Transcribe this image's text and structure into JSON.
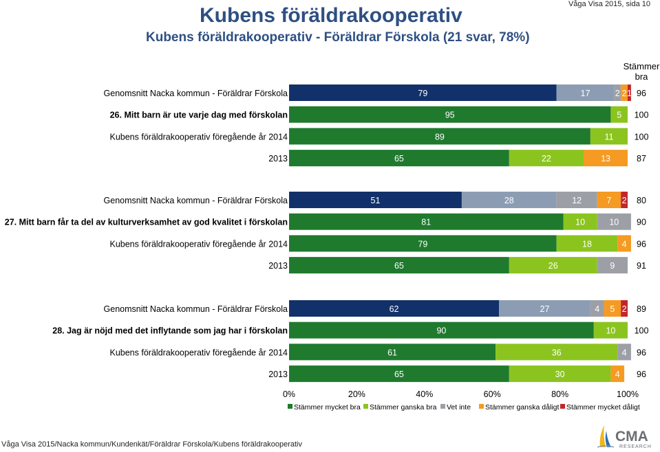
{
  "header": {
    "title": "Kubens föräldrakooperativ",
    "subtitle": "Kubens föräldrakooperativ - Föräldrar Förskola (21 svar, 78%)",
    "source": "Våga Visa 2015, sida 10"
  },
  "footer": {
    "path": "Våga Visa 2015/Nacka kommun/Kundenkät/Föräldrar Förskola/Kubens föräldrakooperativ"
  },
  "logo": {
    "brand": "CMA",
    "sub": "RESEARCH"
  },
  "colors": {
    "series": [
      "#12316a",
      "#8c9db3",
      "#9ca0a6",
      "#f59a22",
      "#c0272d"
    ],
    "series_alt": [
      "#1f7a2e",
      "#8bc41f",
      "#9ca0a6",
      "#f59a22",
      "#c0272d"
    ],
    "question_label": "#000000"
  },
  "chart_data": {
    "type": "bar",
    "orientation": "horizontal",
    "stacked": true,
    "total_header": "Stämmer bra",
    "xlim": [
      0,
      100
    ],
    "xtick_labels": [
      "0%",
      "20%",
      "40%",
      "60%",
      "80%",
      "100%"
    ],
    "legend": [
      "Stämmer mycket bra",
      "Stämmer ganska bra",
      "Vet inte",
      "Stämmer ganska dåligt",
      "Stämmer mycket dåligt"
    ],
    "groups": [
      {
        "rows": [
          {
            "label": "Genomsnitt Nacka kommun - Föräldrar Förskola",
            "palette": "benchmark",
            "values": [
              79,
              17,
              2,
              2,
              1
            ],
            "labels": [
              "79",
              "17",
              "2",
              "2",
              "1"
            ],
            "total": "96"
          },
          {
            "label": "26. Mitt barn är ute varje dag med förskolan",
            "palette": "current",
            "bold": true,
            "values": [
              95,
              5,
              0,
              0,
              0
            ],
            "labels": [
              "95",
              "5",
              "0",
              "",
              ""
            ],
            "total": "100"
          },
          {
            "label": "Kubens föräldrakooperativ föregående år 2014",
            "palette": "current",
            "values": [
              89,
              11,
              0,
              0,
              0
            ],
            "labels": [
              "89",
              "11",
              "0",
              "",
              ""
            ],
            "total": "100"
          },
          {
            "label": "2013",
            "palette": "current",
            "values": [
              65,
              22,
              0,
              13,
              0
            ],
            "labels": [
              "65",
              "22",
              "0",
              "13",
              "0"
            ],
            "total": "87"
          }
        ]
      },
      {
        "rows": [
          {
            "label": "Genomsnitt Nacka kommun - Föräldrar Förskola",
            "palette": "benchmark",
            "values": [
              51,
              28,
              12,
              7,
              2
            ],
            "labels": [
              "51",
              "28",
              "12",
              "7",
              "2"
            ],
            "total": "80"
          },
          {
            "label": "27. Mitt barn får ta del av kulturverksamhet av god kvalitet i förskolan",
            "palette": "current",
            "bold": true,
            "values": [
              81,
              10,
              10,
              0,
              0
            ],
            "labels": [
              "81",
              "10",
              "10",
              "0",
              ""
            ],
            "total": "90"
          },
          {
            "label": "Kubens föräldrakooperativ föregående år 2014",
            "palette": "current",
            "values": [
              79,
              18,
              0,
              4,
              0
            ],
            "labels": [
              "79",
              "18",
              "0",
              "4",
              "0"
            ],
            "total": "96"
          },
          {
            "label": "2013",
            "palette": "current",
            "values": [
              65,
              26,
              9,
              0,
              0
            ],
            "labels": [
              "65",
              "26",
              "9",
              "0",
              ""
            ],
            "total": "91"
          }
        ]
      },
      {
        "rows": [
          {
            "label": "Genomsnitt Nacka kommun - Föräldrar Förskola",
            "palette": "benchmark",
            "values": [
              62,
              27,
              4,
              5,
              2
            ],
            "labels": [
              "62",
              "27",
              "4",
              "5",
              "2"
            ],
            "total": "89"
          },
          {
            "label": "28. Jag är nöjd med det inflytande som jag har i förskolan",
            "palette": "current",
            "bold": true,
            "values": [
              90,
              10,
              0,
              0,
              0
            ],
            "labels": [
              "90",
              "10",
              "0",
              "",
              ""
            ],
            "total": "100"
          },
          {
            "label": "Kubens föräldrakooperativ föregående år 2014",
            "palette": "current",
            "values": [
              61,
              36,
              4,
              0,
              0
            ],
            "labels": [
              "61",
              "36",
              "4",
              "0",
              ""
            ],
            "total": "96"
          },
          {
            "label": "2013",
            "palette": "current",
            "values": [
              65,
              30,
              0,
              4,
              0
            ],
            "labels": [
              "65",
              "30",
              "0",
              "4",
              ""
            ],
            "total": "96"
          }
        ]
      }
    ]
  }
}
